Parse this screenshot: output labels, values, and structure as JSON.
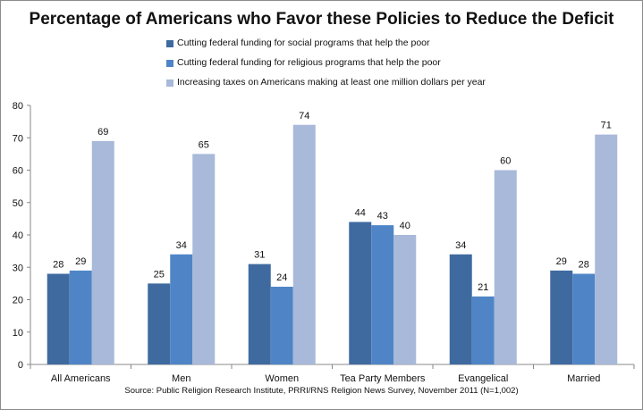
{
  "chart_data": {
    "type": "bar",
    "title": "Percentage of Americans who Favor these Policies to Reduce the Deficit",
    "categories": [
      "All Americans",
      "Men",
      "Women",
      "Tea Party Members",
      "Evangelical",
      "Married"
    ],
    "series": [
      {
        "name": "Cutting federal funding for social programs that help the poor",
        "values": [
          28,
          25,
          31,
          44,
          34,
          29
        ],
        "color": "#3f6aa0"
      },
      {
        "name": "Cutting federal funding for religious programs that help the poor",
        "values": [
          29,
          34,
          24,
          43,
          21,
          28
        ],
        "color": "#4f85c6"
      },
      {
        "name": "Increasing taxes on Americans making at least one million dollars per year",
        "values": [
          69,
          65,
          74,
          40,
          60,
          71
        ],
        "color": "#a8b9d9"
      }
    ],
    "ylim": [
      0,
      80
    ],
    "yticks": [
      0,
      10,
      20,
      30,
      40,
      50,
      60,
      70,
      80
    ],
    "grid": false,
    "legend_position": "top",
    "data_labels": true,
    "source": "Source: Public Religion Research Institute, PRRI/RNS Religion News Survey, November 2011 (N=1,002)"
  }
}
